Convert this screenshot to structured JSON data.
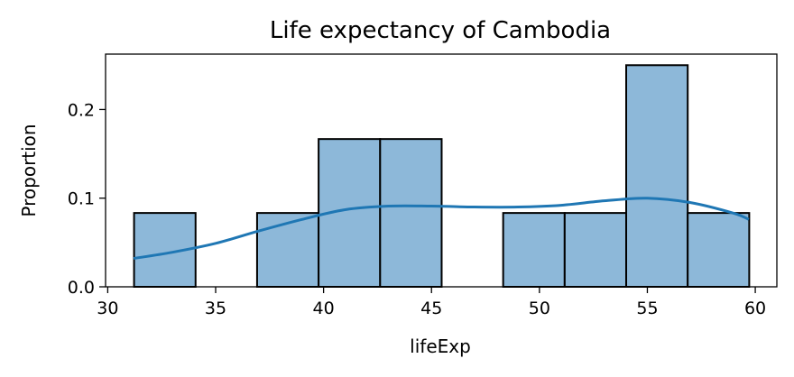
{
  "chart_data": {
    "type": "histogram",
    "title": "Life expectancy of Cambodia",
    "xlabel": "lifeExp",
    "ylabel": "Proportion",
    "xlim": [
      29.9,
      61.0
    ],
    "ylim": [
      0,
      0.2625
    ],
    "xticks": [
      30,
      35,
      40,
      45,
      50,
      55,
      60
    ],
    "yticks": [
      0.0,
      0.1,
      0.2
    ],
    "ytick_labels": [
      "0.0",
      "0.1",
      "0.2"
    ],
    "bin_edges": [
      31.22,
      34.07,
      36.92,
      39.77,
      42.62,
      45.47,
      48.32,
      51.17,
      54.02,
      56.87,
      59.72
    ],
    "values": [
      0.0833,
      0,
      0.0833,
      0.1667,
      0.1667,
      0,
      0.0833,
      0.0833,
      0.25,
      0.0833
    ],
    "kde": {
      "x": [
        31.2,
        33,
        35,
        37,
        39,
        41,
        43,
        45,
        47,
        49,
        51,
        53,
        55,
        57,
        59,
        59.7
      ],
      "y": [
        0.032,
        0.039,
        0.049,
        0.063,
        0.076,
        0.087,
        0.091,
        0.091,
        0.09,
        0.09,
        0.092,
        0.097,
        0.1,
        0.095,
        0.083,
        0.076
      ]
    },
    "colors": {
      "bar_fill": "#8db8d9",
      "bar_edge": "#000000",
      "kde_line": "#1f77b4"
    },
    "grid": false
  }
}
